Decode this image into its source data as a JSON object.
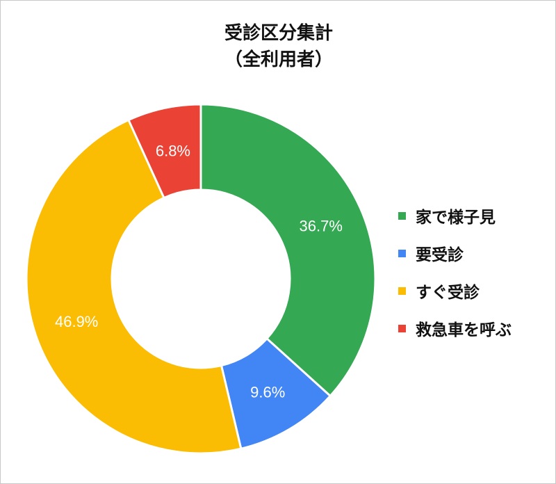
{
  "chart_data": {
    "type": "pie",
    "donut": true,
    "title": "受診区分集計",
    "subtitle": "（全利用者）",
    "categories": [
      "家で様子見",
      "要受診",
      "すぐ受診",
      "救急車を呼ぶ"
    ],
    "values": [
      36.7,
      9.6,
      46.9,
      6.8
    ],
    "data_labels": [
      "36.7%",
      "9.6%",
      "46.9%",
      "6.8%"
    ],
    "colors": [
      "#34A853",
      "#4285F4",
      "#FBBC04",
      "#EA4335"
    ],
    "legend_position": "right"
  }
}
